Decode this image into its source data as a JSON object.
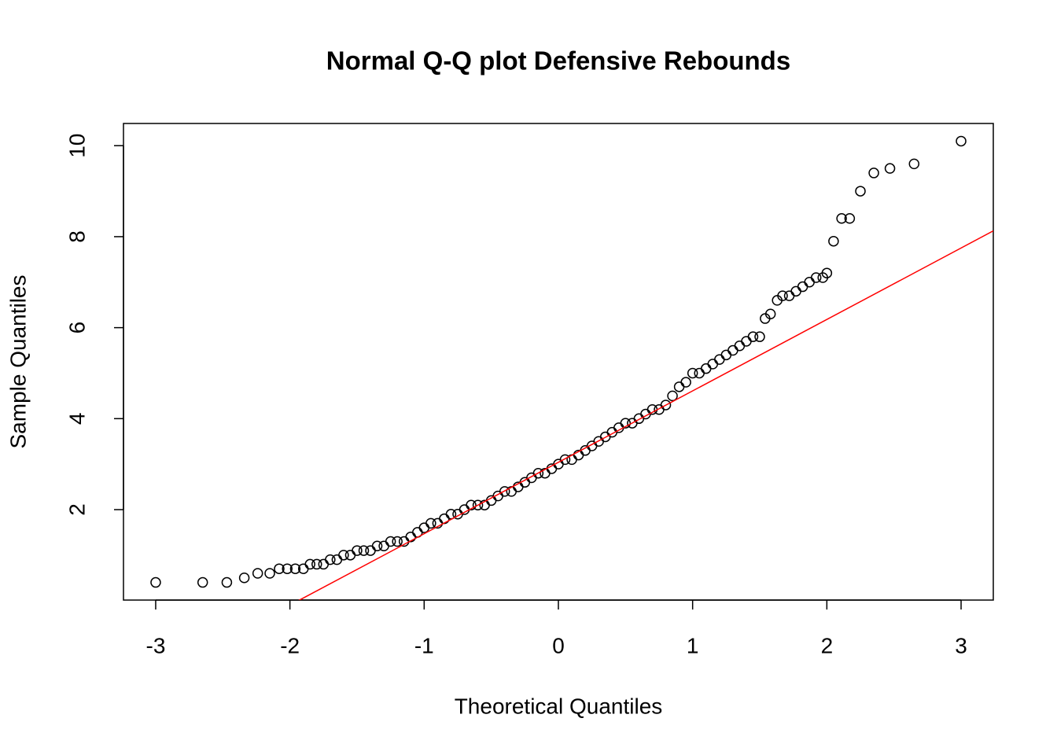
{
  "chart_data": {
    "type": "scatter",
    "title": "Normal Q-Q plot Defensive Rebounds",
    "x_label": "Theoretical Quantiles",
    "y_label": "Sample Quantiles",
    "xlim": [
      -3.24,
      3.24
    ],
    "ylim": [
      0.012,
      10.488
    ],
    "xticks": [
      -3,
      -2,
      -1,
      0,
      1,
      2,
      3
    ],
    "yticks": [
      2,
      4,
      6,
      8,
      10
    ],
    "point_color": "#000000",
    "qqline": {
      "intercept": 3.04,
      "slope": 1.57,
      "color": "#ff0000"
    },
    "x": [
      -3.0,
      -2.65,
      -2.47,
      -2.34,
      -2.24,
      -2.15,
      -2.08,
      -2.02,
      -1.96,
      -1.9,
      -1.85,
      -1.8,
      -1.75,
      -1.7,
      -1.65,
      -1.6,
      -1.55,
      -1.5,
      -1.45,
      -1.4,
      -1.35,
      -1.3,
      -1.25,
      -1.2,
      -1.15,
      -1.1,
      -1.05,
      -1.0,
      -0.95,
      -0.9,
      -0.85,
      -0.8,
      -0.75,
      -0.7,
      -0.65,
      -0.6,
      -0.55,
      -0.5,
      -0.45,
      -0.4,
      -0.35,
      -0.3,
      -0.25,
      -0.2,
      -0.15,
      -0.1,
      -0.05,
      0,
      0.05,
      0.1,
      0.15,
      0.2,
      0.25,
      0.3,
      0.35,
      0.4,
      0.45,
      0.5,
      0.55,
      0.6,
      0.65,
      0.7,
      0.75,
      0.8,
      0.85,
      0.9,
      0.95,
      1.0,
      1.05,
      1.1,
      1.15,
      1.2,
      1.25,
      1.3,
      1.35,
      1.4,
      1.45,
      1.5,
      1.54,
      1.58,
      1.63,
      1.67,
      1.72,
      1.77,
      1.82,
      1.87,
      1.92,
      1.97,
      2.0,
      2.05,
      2.11,
      2.17,
      2.25,
      2.35,
      2.47,
      2.65,
      3.0
    ],
    "y": [
      0.4,
      0.4,
      0.4,
      0.5,
      0.6,
      0.6,
      0.7,
      0.7,
      0.7,
      0.7,
      0.8,
      0.8,
      0.8,
      0.9,
      0.9,
      1.0,
      1.0,
      1.1,
      1.1,
      1.1,
      1.2,
      1.2,
      1.3,
      1.3,
      1.3,
      1.4,
      1.5,
      1.6,
      1.7,
      1.7,
      1.8,
      1.9,
      1.9,
      2.0,
      2.1,
      2.1,
      2.1,
      2.2,
      2.3,
      2.4,
      2.4,
      2.5,
      2.6,
      2.7,
      2.8,
      2.8,
      2.9,
      3.0,
      3.1,
      3.1,
      3.2,
      3.3,
      3.4,
      3.5,
      3.6,
      3.7,
      3.8,
      3.9,
      3.9,
      4.0,
      4.1,
      4.2,
      4.2,
      4.3,
      4.5,
      4.7,
      4.8,
      5.0,
      5.0,
      5.1,
      5.2,
      5.3,
      5.4,
      5.5,
      5.6,
      5.7,
      5.8,
      5.8,
      6.2,
      6.3,
      6.6,
      6.7,
      6.7,
      6.8,
      6.9,
      7.0,
      7.1,
      7.1,
      7.2,
      7.9,
      8.4,
      8.4,
      9.0,
      9.4,
      9.5,
      9.6,
      10.1
    ]
  }
}
